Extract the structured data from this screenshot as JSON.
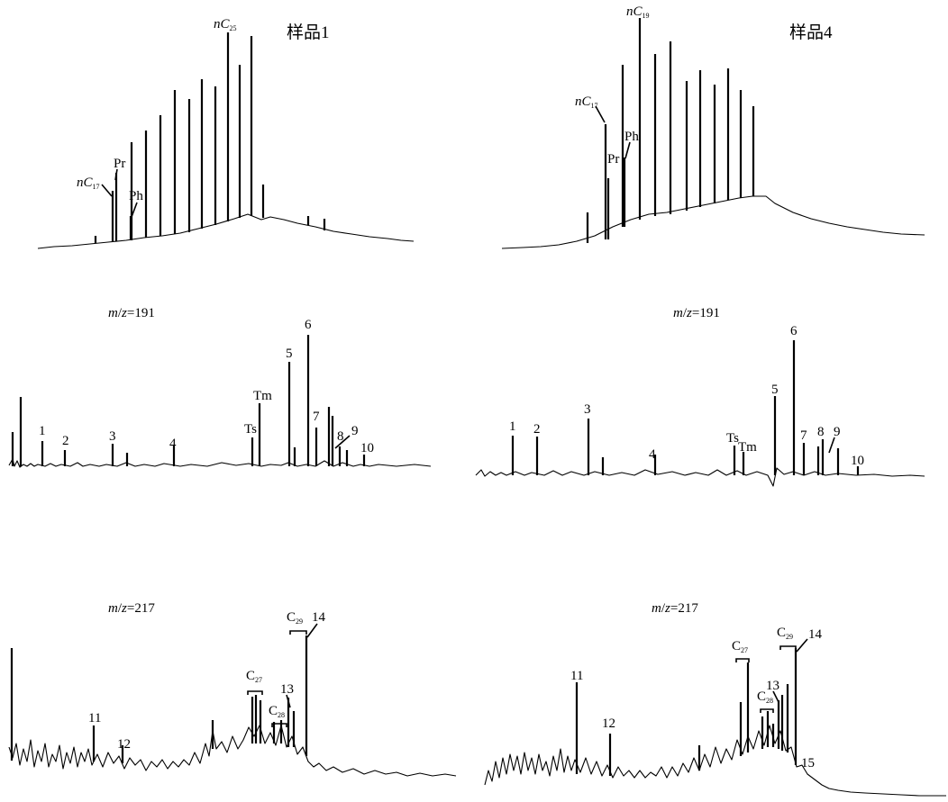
{
  "panels": {
    "tic1": {
      "sample": "样品1"
    },
    "tic4": {
      "sample": "样品4"
    }
  },
  "ions": {
    "m191": "m/z=191",
    "m217": "m/z=217"
  },
  "labels": {
    "nC": "nC",
    "c": "C",
    "sub17": "17",
    "sub19": "19",
    "sub25": "25",
    "sub27": "27",
    "sub28": "28",
    "sub29": "29",
    "pr": "Pr",
    "ph": "Ph",
    "ts": "Ts",
    "tm": "Tm",
    "n1": "1",
    "n2": "2",
    "n3": "3",
    "n4": "4",
    "n5": "5",
    "n6": "6",
    "n7": "7",
    "n8": "8",
    "n9": "9",
    "n10": "10",
    "n11": "11",
    "n12": "12",
    "n13": "13",
    "n14": "14",
    "n15": "15"
  }
}
